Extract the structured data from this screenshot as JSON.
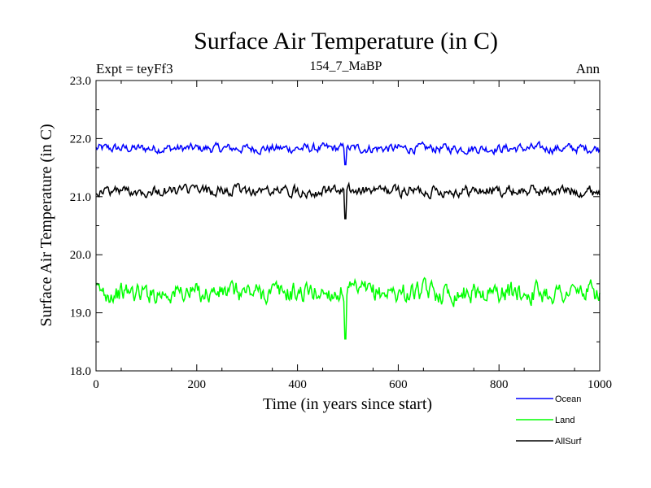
{
  "chart_data": {
    "type": "line",
    "title": "Surface Air Temperature (in C)",
    "subtitle": "154_7_MaBP",
    "expt_label": "Expt = teyFf3",
    "season_label": "Ann",
    "xlabel": "Time (in years since start)",
    "ylabel": "Surface Air Temperature (in C)",
    "xlim": [
      0,
      1000
    ],
    "ylim": [
      18.0,
      23.0
    ],
    "x_ticks": [
      0,
      200,
      400,
      600,
      800,
      1000
    ],
    "x_tick_labels": [
      "0",
      "200",
      "400",
      "600",
      "800",
      "1000"
    ],
    "y_ticks": [
      18.0,
      19.0,
      20.0,
      21.0,
      22.0,
      23.0
    ],
    "y_tick_labels": [
      "18.0",
      "19.0",
      "20.0",
      "21.0",
      "22.0",
      "23.0"
    ],
    "grid": false,
    "legend_position": "bottom-right",
    "series": [
      {
        "name": "Ocean",
        "color": "#0000ff",
        "mean": 21.83,
        "noise": 0.09,
        "dip": {
          "x": 495,
          "value": 21.55
        }
      },
      {
        "name": "Land",
        "color": "#00ff00",
        "mean": 19.35,
        "noise": 0.2,
        "dip": {
          "x": 495,
          "value": 18.55
        }
      },
      {
        "name": "AllSurf",
        "color": "#000000",
        "mean": 21.1,
        "noise": 0.11,
        "dip": {
          "x": 495,
          "value": 20.62
        }
      }
    ]
  }
}
